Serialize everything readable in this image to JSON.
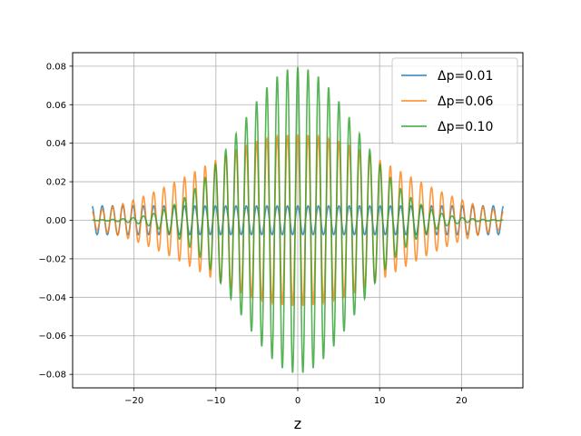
{
  "chart_data": {
    "type": "line",
    "title": "",
    "xlabel": "z",
    "ylabel": "",
    "xlim": [
      -27.5,
      27.5
    ],
    "ylim": [
      -0.087,
      0.087
    ],
    "x_ticks": [
      -20,
      -10,
      0,
      10,
      20
    ],
    "x_tick_labels": [
      "−20",
      "−10",
      "0",
      "10",
      "20"
    ],
    "y_ticks": [
      -0.08,
      -0.06,
      -0.04,
      -0.02,
      0.0,
      0.02,
      0.04,
      0.06,
      0.08
    ],
    "y_tick_labels": [
      "−0.08",
      "−0.06",
      "−0.04",
      "−0.02",
      "0.00",
      "0.02",
      "0.04",
      "0.06",
      "0.08"
    ],
    "grid": true,
    "legend_position": "top-right",
    "x_range": [
      -25.1,
      25.1
    ],
    "oscillation_period": 1.257,
    "series": [
      {
        "name": "Δp=0.01",
        "color": "#1f77b4",
        "amplitude": 0.0075,
        "envelope_width": 1000
      },
      {
        "name": "Δp=0.06",
        "color": "#ff7f0e",
        "amplitude": 0.0445,
        "envelope_width": 16.7
      },
      {
        "name": "Δp=0.10",
        "color": "#2ca02c",
        "amplitude": 0.0795,
        "envelope_width": 10.0
      }
    ]
  }
}
